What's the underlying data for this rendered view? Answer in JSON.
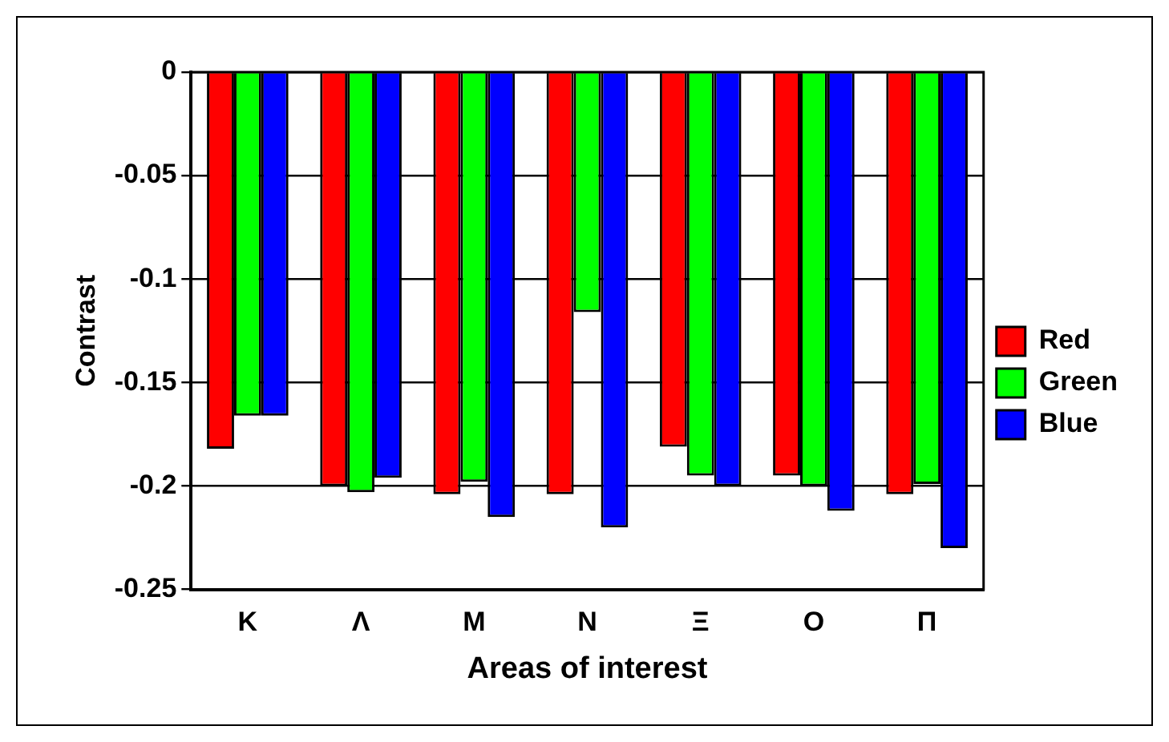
{
  "chart_data": {
    "type": "bar",
    "xlabel": "Areas of interest",
    "ylabel": "Contrast",
    "categories": [
      "Κ",
      "Λ",
      "Μ",
      "Ν",
      "Ξ",
      "Ο",
      "Π"
    ],
    "series": [
      {
        "name": "Red",
        "color": "#ff0000",
        "values": [
          -0.182,
          -0.2,
          -0.204,
          -0.204,
          -0.181,
          -0.195,
          -0.204
        ]
      },
      {
        "name": "Green",
        "color": "#00ff00",
        "values": [
          -0.166,
          -0.203,
          -0.198,
          -0.116,
          -0.195,
          -0.2,
          -0.199
        ]
      },
      {
        "name": "Blue",
        "color": "#0000ff",
        "values": [
          -0.166,
          -0.196,
          -0.215,
          -0.22,
          -0.2,
          -0.212,
          -0.23
        ]
      }
    ],
    "ylim": [
      -0.25,
      0
    ],
    "yticks": [
      0,
      -0.05,
      -0.1,
      -0.15,
      -0.2,
      -0.25
    ],
    "grid": "y",
    "legend": "right"
  }
}
